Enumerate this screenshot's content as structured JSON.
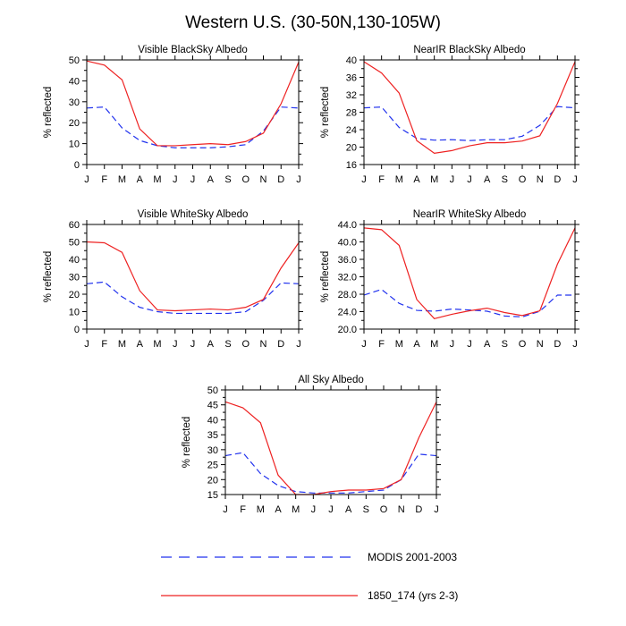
{
  "figure_title": "Western U.S. (30-50N,130-105W)",
  "colors": {
    "modis": "#2233ee",
    "model": "#ee2222",
    "axis": "#000000"
  },
  "legend": [
    {
      "label": "MODIS 2001-2003",
      "style": "dashed",
      "color": "#2233ee"
    },
    {
      "label": "1850_174 (yrs 2-3)",
      "style": "solid",
      "color": "#ee2222"
    }
  ],
  "chart_data": [
    {
      "type": "line",
      "title": "Visible BlackSky Albedo",
      "xlabel": "",
      "ylabel": "% reflected",
      "categories": [
        "J",
        "F",
        "M",
        "A",
        "M",
        "J",
        "J",
        "A",
        "S",
        "O",
        "N",
        "D",
        "J"
      ],
      "ylim": [
        0,
        50
      ],
      "yticks": [
        "0",
        "10",
        "20",
        "30",
        "40",
        "50"
      ],
      "series": [
        {
          "name": "MODIS 2001-2003",
          "values": [
            27,
            27.5,
            17.5,
            11.5,
            9,
            8,
            8,
            8,
            8.5,
            9.5,
            16,
            27.5,
            27
          ]
        },
        {
          "name": "1850_174 (yrs 2-3)",
          "values": [
            49.5,
            47.5,
            40.5,
            17,
            9,
            9,
            9.5,
            10,
            9.5,
            11,
            15,
            29,
            49
          ]
        }
      ]
    },
    {
      "type": "line",
      "title": "NearIR BlackSky Albedo",
      "xlabel": "",
      "ylabel": "% reflected",
      "categories": [
        "J",
        "F",
        "M",
        "A",
        "M",
        "J",
        "J",
        "A",
        "S",
        "O",
        "N",
        "D",
        "J"
      ],
      "ylim": [
        16,
        40
      ],
      "yticks": [
        "16",
        "20",
        "24",
        "28",
        "32",
        "36",
        "40"
      ],
      "series": [
        {
          "name": "MODIS 2001-2003",
          "values": [
            29,
            29.2,
            24.5,
            22,
            21.6,
            21.7,
            21.5,
            21.7,
            21.7,
            22.5,
            25,
            29.3,
            29
          ]
        },
        {
          "name": "1850_174 (yrs 2-3)",
          "values": [
            39.6,
            37,
            32.4,
            21.5,
            18.6,
            19.2,
            20.3,
            21,
            21,
            21.4,
            22.6,
            30,
            39.6
          ]
        }
      ]
    },
    {
      "type": "line",
      "title": "Visible WhiteSky Albedo",
      "xlabel": "",
      "ylabel": "% reflected",
      "categories": [
        "J",
        "F",
        "M",
        "A",
        "M",
        "J",
        "J",
        "A",
        "S",
        "O",
        "N",
        "D",
        "J"
      ],
      "ylim": [
        0,
        60
      ],
      "yticks": [
        "0",
        "10",
        "20",
        "30",
        "40",
        "50",
        "60"
      ],
      "series": [
        {
          "name": "MODIS 2001-2003",
          "values": [
            26,
            27,
            18.5,
            12.5,
            10,
            9,
            9,
            9,
            9,
            10,
            16.5,
            26.5,
            26
          ]
        },
        {
          "name": "1850_174 (yrs 2-3)",
          "values": [
            50,
            49.5,
            44,
            22,
            11,
            10.5,
            11,
            11.5,
            11,
            12.5,
            17,
            35,
            49.5
          ]
        }
      ]
    },
    {
      "type": "line",
      "title": "NearIR WhiteSky Albedo",
      "xlabel": "",
      "ylabel": "% reflected",
      "categories": [
        "J",
        "F",
        "M",
        "A",
        "M",
        "J",
        "J",
        "A",
        "S",
        "O",
        "N",
        "D",
        "J"
      ],
      "ylim": [
        20,
        44
      ],
      "yticks": [
        "20.0",
        "24.0",
        "28.0",
        "32.0",
        "36.0",
        "40.0",
        "44.0"
      ],
      "series": [
        {
          "name": "MODIS 2001-2003",
          "values": [
            27.8,
            29.1,
            25.9,
            24.3,
            24.1,
            24.6,
            24.4,
            24.1,
            23,
            22.8,
            24.1,
            27.8,
            27.8
          ]
        },
        {
          "name": "1850_174 (yrs 2-3)",
          "values": [
            43.2,
            42.8,
            39.2,
            26.8,
            22.4,
            23.4,
            24.2,
            24.8,
            23.8,
            23.1,
            24.2,
            34.9,
            43.2
          ]
        }
      ]
    },
    {
      "type": "line",
      "title": "All Sky Albedo",
      "xlabel": "",
      "ylabel": "% reflected",
      "categories": [
        "J",
        "F",
        "M",
        "A",
        "M",
        "J",
        "J",
        "A",
        "S",
        "O",
        "N",
        "D",
        "J"
      ],
      "ylim": [
        15,
        50
      ],
      "yticks": [
        "15",
        "20",
        "25",
        "30",
        "35",
        "40",
        "45",
        "50"
      ],
      "series": [
        {
          "name": "MODIS 2001-2003",
          "values": [
            28,
            29,
            22,
            18,
            16,
            15.5,
            15.5,
            15.5,
            16,
            16.5,
            20,
            28.5,
            28
          ]
        },
        {
          "name": "1850_174 (yrs 2-3)",
          "values": [
            46,
            44,
            39,
            21.5,
            15,
            15,
            16,
            16.5,
            16.5,
            17,
            20,
            34,
            46
          ]
        }
      ]
    }
  ]
}
